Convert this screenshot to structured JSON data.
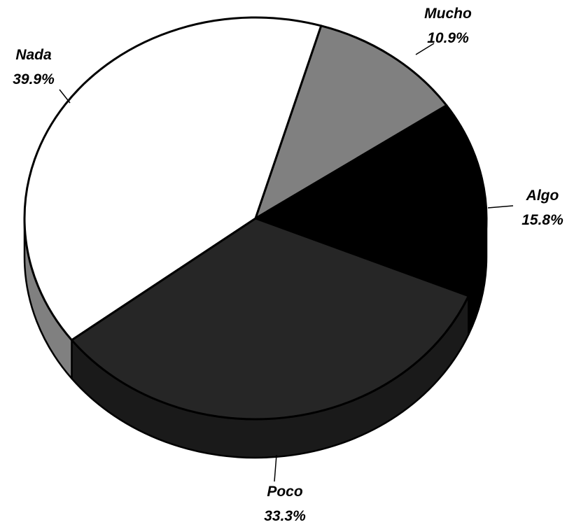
{
  "chart_data": {
    "type": "pie",
    "style": "3d",
    "title": "",
    "slices": [
      {
        "label": "Mucho",
        "value": 10.9,
        "percent_label": "10.9%",
        "color": "#808080"
      },
      {
        "label": "Algo",
        "value": 15.8,
        "percent_label": "15.8%",
        "color": "#000000"
      },
      {
        "label": "Poco",
        "value": 33.3,
        "percent_label": "33.3%",
        "color": "#262626"
      },
      {
        "label": "Nada",
        "value": 39.9,
        "percent_label": "39.9%",
        "color": "#ffffff"
      }
    ],
    "side_colors": {
      "Poco": "#1a1a1a",
      "Algo": "#000000",
      "Nada": "#808080"
    },
    "outline_color": "#000000",
    "legend": "none"
  }
}
